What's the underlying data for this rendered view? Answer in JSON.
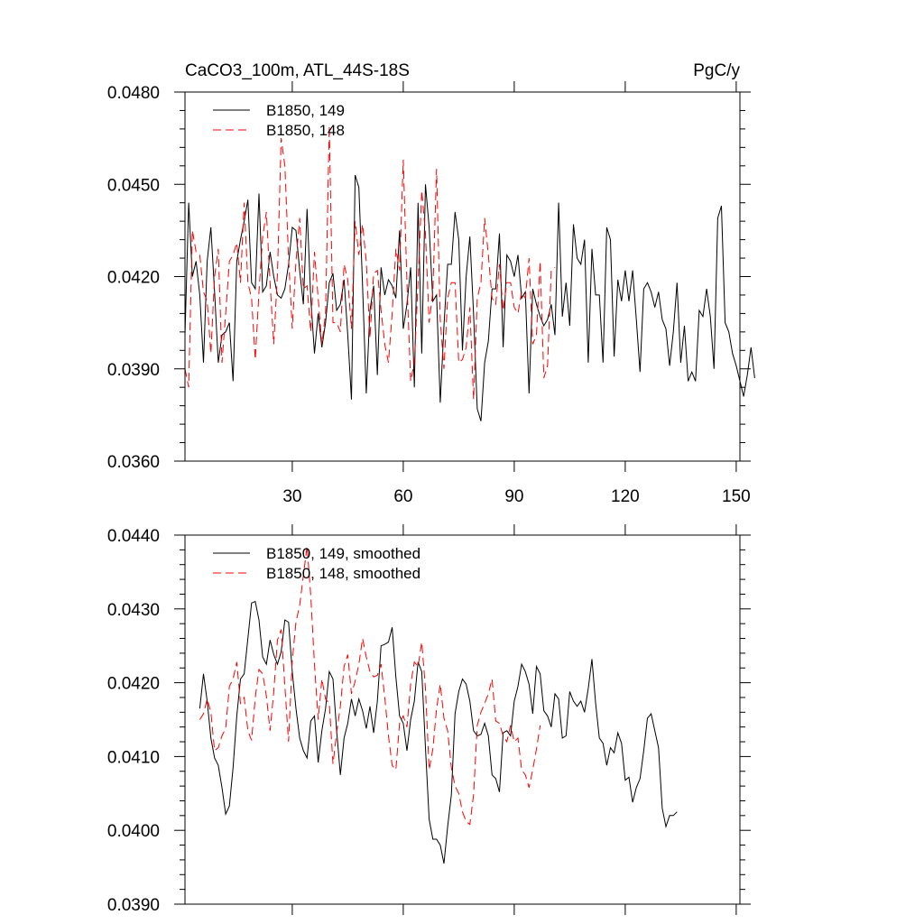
{
  "figure": {
    "title_left": "CaCO3_100m, ATL_44S-18S",
    "title_right": "PgC/y"
  },
  "chart_data": [
    {
      "type": "line",
      "title": "CaCO3_100m, ATL_44S-18S",
      "units": "PgC/y",
      "xlim": [
        1,
        151
      ],
      "ylim": [
        0.036,
        0.048
      ],
      "x_tick_values": [
        30,
        60,
        90,
        120,
        150
      ],
      "x_tick_labels": [
        "30",
        "60",
        "90",
        "120",
        "150"
      ],
      "y_tick_values": [
        0.036,
        0.039,
        0.042,
        0.045,
        0.048
      ],
      "y_tick_labels": [
        "0.0360",
        "0.0390",
        "0.0420",
        "0.0450",
        "0.0480"
      ],
      "legend_location": "top-left",
      "series": [
        {
          "name": "B1850, 149",
          "color": "#000000",
          "dash": "solid",
          "x_start": 1,
          "values": [
            0.0401,
            0.0444,
            0.042,
            0.0425,
            0.0414,
            0.0392,
            0.0425,
            0.0436,
            0.0415,
            0.0392,
            0.0401,
            0.0402,
            0.0405,
            0.0386,
            0.0425,
            0.0432,
            0.0438,
            0.0445,
            0.0418,
            0.0416,
            0.0447,
            0.0415,
            0.0417,
            0.0428,
            0.042,
            0.0414,
            0.0413,
            0.0416,
            0.0424,
            0.0436,
            0.0435,
            0.0422,
            0.0411,
            0.0442,
            0.0413,
            0.0395,
            0.0408,
            0.0397,
            0.0405,
            0.0418,
            0.0421,
            0.0409,
            0.0411,
            0.0419,
            0.0401,
            0.038,
            0.0453,
            0.0449,
            0.0417,
            0.0382,
            0.0409,
            0.0417,
            0.0388,
            0.0423,
            0.0414,
            0.0419,
            0.0417,
            0.0413,
            0.0435,
            0.0403,
            0.0411,
            0.0423,
            0.0384,
            0.0444,
            0.0395,
            0.045,
            0.0436,
            0.0412,
            0.0414,
            0.0379,
            0.0404,
            0.0424,
            0.0424,
            0.0441,
            0.0432,
            0.0396,
            0.042,
            0.0433,
            0.0408,
            0.0377,
            0.0373,
            0.0392,
            0.0399,
            0.0416,
            0.0416,
            0.0434,
            0.0397,
            0.0427,
            0.0425,
            0.042,
            0.0427,
            0.0413,
            0.0415,
            0.0382,
            0.0416,
            0.0411,
            0.0407,
            0.0404,
            0.0406,
            0.0411,
            0.0401,
            0.0444,
            0.0407,
            0.0418,
            0.0404,
            0.0437,
            0.0426,
            0.0424,
            0.0432,
            0.0392,
            0.0429,
            0.0414,
            0.0414,
            0.0392,
            0.0436,
            0.0432,
            0.0394,
            0.0419,
            0.0412,
            0.0422,
            0.0412,
            0.0422,
            0.0406,
            0.0389,
            0.0416,
            0.0418,
            0.0415,
            0.041,
            0.0415,
            0.0406,
            0.0403,
            0.0391,
            0.0402,
            0.0418,
            0.0392,
            0.0404,
            0.0386,
            0.0389,
            0.0386,
            0.0409,
            0.0407,
            0.0416,
            0.0407,
            0.039,
            0.0439,
            0.0443,
            0.0405,
            0.0402,
            0.0395,
            0.0391,
            0.0386,
            0.0381,
            0.0388,
            0.0397,
            0.0387
          ]
        },
        {
          "name": "B1850, 148",
          "color": "#ff0000",
          "dash": "dashed",
          "x_start": 1,
          "values": [
            0.039,
            0.0384,
            0.0435,
            0.0428,
            0.0427,
            0.0415,
            0.0412,
            0.0395,
            0.042,
            0.0429,
            0.0392,
            0.0408,
            0.0425,
            0.0427,
            0.0431,
            0.0418,
            0.0444,
            0.0418,
            0.0413,
            0.0393,
            0.0415,
            0.0433,
            0.0441,
            0.0418,
            0.0398,
            0.0421,
            0.0465,
            0.0456,
            0.0426,
            0.0403,
            0.0425,
            0.0439,
            0.0416,
            0.0417,
            0.0402,
            0.0428,
            0.0413,
            0.0398,
            0.0408,
            0.0469,
            0.0405,
            0.0405,
            0.0402,
            0.0424,
            0.0419,
            0.0403,
            0.0438,
            0.0427,
            0.0437,
            0.0425,
            0.04,
            0.0421,
            0.0422,
            0.0409,
            0.0398,
            0.0392,
            0.0408,
            0.0429,
            0.0422,
            0.0458,
            0.0418,
            0.0386,
            0.0392,
            0.0418,
            0.0448,
            0.0434,
            0.0405,
            0.0415,
            0.0455,
            0.0406,
            0.039,
            0.0413,
            0.0418,
            0.0418,
            0.0392,
            0.0393,
            0.0397,
            0.041,
            0.038,
            0.0413,
            0.0418,
            0.0439,
            0.0427,
            0.0413,
            0.0411,
            0.0424,
            0.0409,
            0.0418,
            0.0418,
            0.041,
            0.0408,
            0.0415,
            0.0413,
            0.0426,
            0.0398,
            0.0401,
            0.0425,
            0.0387,
            0.0391,
            0.0422,
            0.0423
          ]
        }
      ]
    },
    {
      "type": "line",
      "title": "",
      "xlim": [
        1,
        151
      ],
      "ylim": [
        0.039,
        0.044
      ],
      "x_tick_values": [
        30,
        60,
        90,
        120,
        150
      ],
      "x_tick_labels": [
        "",
        "",
        "",
        "",
        ""
      ],
      "y_tick_values": [
        0.039,
        0.04,
        0.041,
        0.042,
        0.043,
        0.044
      ],
      "y_tick_labels": [
        "0.0390",
        "0.0400",
        "0.0410",
        "0.0420",
        "0.0430",
        "0.0440"
      ],
      "legend_location": "top-left",
      "series": [
        {
          "name": "B1850, 149, smoothed",
          "color": "#000000",
          "dash": "solid",
          "x_start": 5,
          "values": [
            0.04165,
            0.04212,
            0.04175,
            0.04125,
            0.04098,
            0.04088,
            0.04058,
            0.04022,
            0.04033,
            0.04085,
            0.04155,
            0.04205,
            0.04212,
            0.0426,
            0.04308,
            0.0431,
            0.04285,
            0.04235,
            0.04225,
            0.04258,
            0.04238,
            0.04225,
            0.04242,
            0.04285,
            0.04282,
            0.04215,
            0.04165,
            0.04125,
            0.04108,
            0.04098,
            0.04148,
            0.04155,
            0.04092,
            0.04135,
            0.04165,
            0.04215,
            0.04205,
            0.04135,
            0.04075,
            0.04125,
            0.04145,
            0.04178,
            0.04155,
            0.04178,
            0.04162,
            0.04138,
            0.04168,
            0.04132,
            0.04175,
            0.0425,
            0.04252,
            0.04255,
            0.04275,
            0.04208,
            0.04155,
            0.04145,
            0.04108,
            0.0415,
            0.04175,
            0.04228,
            0.04215,
            0.04112,
            0.04015,
            0.03988,
            0.03988,
            0.0398,
            0.03955,
            0.04005,
            0.04048,
            0.04158,
            0.04188,
            0.04205,
            0.04198,
            0.04175,
            0.04135,
            0.04128,
            0.0413,
            0.04145,
            0.04128,
            0.04075,
            0.0407,
            0.04052,
            0.04132,
            0.04135,
            0.04128,
            0.04175,
            0.04195,
            0.04225,
            0.04215,
            0.04198,
            0.04158,
            0.04222,
            0.04212,
            0.04162,
            0.04155,
            0.0414,
            0.04185,
            0.04178,
            0.04125,
            0.04128,
            0.04188,
            0.04175,
            0.04168,
            0.04175,
            0.0416,
            0.04192,
            0.04232,
            0.04172,
            0.04125,
            0.04118,
            0.04088,
            0.04112,
            0.04105,
            0.04132,
            0.04118,
            0.04068,
            0.04072,
            0.04038,
            0.04058,
            0.0407,
            0.04108,
            0.04152,
            0.04158,
            0.04135,
            0.04112,
            0.0403,
            0.04005,
            0.0402,
            0.0402,
            0.04025
          ]
        },
        {
          "name": "B1850, 148, smoothed",
          "color": "#ff0000",
          "dash": "dashed",
          "x_start": 5,
          "values": [
            0.0415,
            0.04158,
            0.04178,
            0.0416,
            0.04108,
            0.04112,
            0.04128,
            0.04138,
            0.04195,
            0.04205,
            0.04228,
            0.04172,
            0.0418,
            0.04135,
            0.04122,
            0.0418,
            0.04218,
            0.04212,
            0.04182,
            0.04135,
            0.04188,
            0.04258,
            0.04272,
            0.04195,
            0.0412,
            0.0423,
            0.04282,
            0.04305,
            0.04345,
            0.04385,
            0.04318,
            0.04225,
            0.0415,
            0.04205,
            0.04178,
            0.04172,
            0.0409,
            0.04132,
            0.04168,
            0.04222,
            0.04238,
            0.04185,
            0.04202,
            0.04225,
            0.0426,
            0.04235,
            0.04215,
            0.04208,
            0.0421,
            0.04225,
            0.0418,
            0.04128,
            0.04088,
            0.04082,
            0.04145,
            0.04155,
            0.0414,
            0.04198,
            0.04228,
            0.04222,
            0.04255,
            0.04192,
            0.04082,
            0.0411,
            0.04165,
            0.04198,
            0.04152,
            0.04135,
            0.04085,
            0.0406,
            0.0405,
            0.04025,
            0.04012,
            0.04008,
            0.04048,
            0.04142,
            0.0416,
            0.04172,
            0.04185,
            0.04205,
            0.04148,
            0.04145,
            0.04128,
            0.0412,
            0.04142,
            0.0412,
            0.04125,
            0.04082,
            0.04075,
            0.04058,
            0.04082,
            0.0411,
            0.04142
          ]
        }
      ]
    }
  ]
}
